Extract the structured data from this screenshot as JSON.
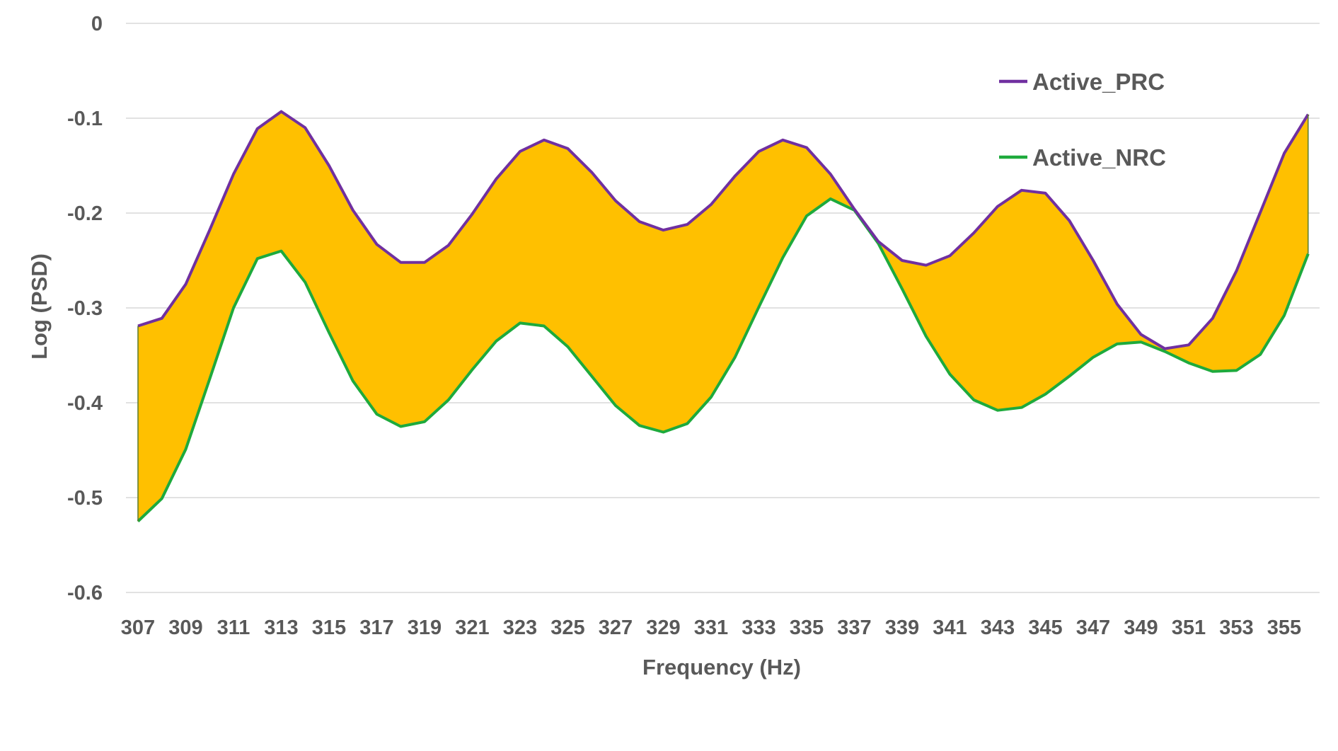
{
  "chart_data": {
    "type": "area",
    "title": "",
    "xlabel": "Frequency (Hz)",
    "ylabel": "Log (PSD)",
    "ylim": [
      -0.6,
      0
    ],
    "yticks": [
      "0",
      "-0.1",
      "-0.2",
      "-0.3",
      "-0.4",
      "-0.5",
      "-0.6"
    ],
    "xticks": [
      "307",
      "309",
      "311",
      "313",
      "315",
      "317",
      "319",
      "321",
      "323",
      "325",
      "327",
      "329",
      "331",
      "333",
      "335",
      "337",
      "339",
      "341",
      "343",
      "345",
      "347",
      "349",
      "351",
      "353",
      "355"
    ],
    "x": [
      307,
      308,
      309,
      310,
      311,
      312,
      313,
      314,
      315,
      316,
      317,
      318,
      319,
      320,
      321,
      322,
      323,
      324,
      325,
      326,
      327,
      328,
      329,
      330,
      331,
      332,
      333,
      334,
      335,
      336,
      337,
      338,
      339,
      340,
      341,
      342,
      343,
      344,
      345,
      346,
      347,
      348,
      349,
      350,
      351,
      352,
      353,
      354,
      355,
      356
    ],
    "grid": true,
    "legend_position": "top-right",
    "fill_between_color": "#FFC000",
    "series": [
      {
        "name": "Active_PRC",
        "color": "#7030A0",
        "values": [
          -0.319,
          -0.311,
          -0.275,
          -0.218,
          -0.159,
          -0.111,
          -0.093,
          -0.11,
          -0.15,
          -0.197,
          -0.233,
          -0.252,
          -0.252,
          -0.234,
          -0.201,
          -0.164,
          -0.135,
          -0.123,
          -0.132,
          -0.157,
          -0.187,
          -0.209,
          -0.218,
          -0.212,
          -0.191,
          -0.161,
          -0.135,
          -0.123,
          -0.131,
          -0.159,
          -0.196,
          -0.23,
          -0.25,
          -0.255,
          -0.245,
          -0.221,
          -0.193,
          -0.176,
          -0.179,
          -0.208,
          -0.25,
          -0.296,
          -0.328,
          -0.343,
          -0.339,
          -0.311,
          -0.261,
          -0.199,
          -0.137,
          -0.096
        ]
      },
      {
        "name": "Active_NRC",
        "color": "#1EAA3C",
        "values": [
          -0.525,
          -0.501,
          -0.449,
          -0.375,
          -0.3,
          -0.248,
          -0.24,
          -0.273,
          -0.326,
          -0.377,
          -0.412,
          -0.425,
          -0.42,
          -0.397,
          -0.365,
          -0.335,
          -0.316,
          -0.319,
          -0.341,
          -0.372,
          -0.403,
          -0.424,
          -0.431,
          -0.422,
          -0.394,
          -0.352,
          -0.299,
          -0.247,
          -0.203,
          -0.185,
          -0.197,
          -0.232,
          -0.28,
          -0.33,
          -0.37,
          -0.397,
          -0.408,
          -0.405,
          -0.391,
          -0.372,
          -0.352,
          -0.338,
          -0.336,
          -0.346,
          -0.358,
          -0.367,
          -0.366,
          -0.349,
          -0.308,
          -0.243
        ]
      }
    ]
  }
}
